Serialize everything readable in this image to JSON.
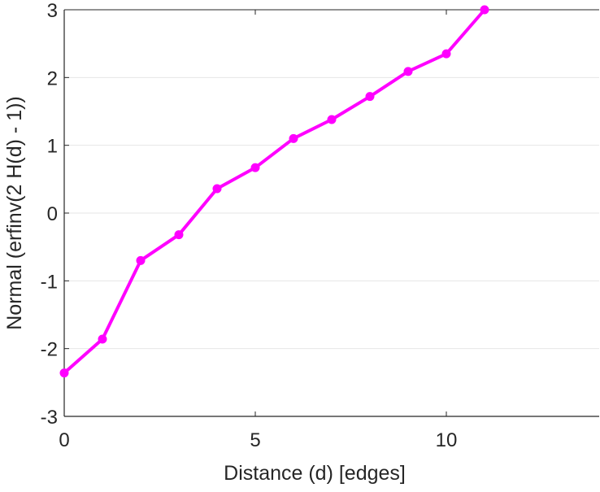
{
  "chart_data": {
    "type": "line",
    "title": "",
    "xlabel": "Distance (d) [edges]",
    "ylabel": "Normal (erfinv(2 H(d) - 1))",
    "xlim": [
      0,
      14
    ],
    "ylim": [
      -3,
      3
    ],
    "xticks": [
      0,
      5,
      10
    ],
    "xtick_labels": [
      "0",
      "5",
      "10"
    ],
    "yticks": [
      -3,
      -2,
      -1,
      0,
      1,
      2,
      3
    ],
    "ytick_labels": [
      "-3",
      "-2",
      "-1",
      "0",
      "1",
      "2",
      "3"
    ],
    "grid": "horizontal",
    "series": [
      {
        "name": "",
        "color": "#ff00ff",
        "marker": "circle",
        "x": [
          0,
          1,
          2,
          3,
          4,
          5,
          6,
          7,
          8,
          9,
          10,
          11
        ],
        "y": [
          -2.36,
          -1.86,
          -0.7,
          -0.32,
          0.36,
          0.67,
          1.1,
          1.38,
          1.72,
          2.09,
          2.35,
          3.0
        ]
      }
    ]
  }
}
